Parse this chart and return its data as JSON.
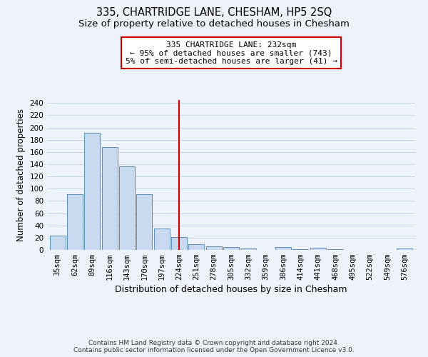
{
  "title": "335, CHARTRIDGE LANE, CHESHAM, HP5 2SQ",
  "subtitle": "Size of property relative to detached houses in Chesham",
  "xlabel": "Distribution of detached houses by size in Chesham",
  "ylabel": "Number of detached properties",
  "footer_line1": "Contains HM Land Registry data © Crown copyright and database right 2024.",
  "footer_line2": "Contains public sector information licensed under the Open Government Licence v3.0.",
  "categories": [
    "35sqm",
    "62sqm",
    "89sqm",
    "116sqm",
    "143sqm",
    "170sqm",
    "197sqm",
    "224sqm",
    "251sqm",
    "278sqm",
    "305sqm",
    "332sqm",
    "359sqm",
    "386sqm",
    "414sqm",
    "441sqm",
    "468sqm",
    "495sqm",
    "522sqm",
    "549sqm",
    "576sqm"
  ],
  "values": [
    23,
    91,
    191,
    168,
    137,
    91,
    35,
    21,
    9,
    6,
    5,
    2,
    0,
    5,
    1,
    3,
    1,
    0,
    0,
    0,
    2
  ],
  "bar_color": "#c9d9f0",
  "bar_edge_color": "#5b8db8",
  "grid_color": "#c8d4e8",
  "background_color": "#eef2fa",
  "vline_x_index": 7,
  "vline_color": "#cc0000",
  "annotation_line1": "335 CHARTRIDGE LANE: 232sqm",
  "annotation_line2": "← 95% of detached houses are smaller (743)",
  "annotation_line3": "5% of semi-detached houses are larger (41) →",
  "annotation_box_color": "#cc0000",
  "ylim": [
    0,
    245
  ],
  "yticks": [
    0,
    20,
    40,
    60,
    80,
    100,
    120,
    140,
    160,
    180,
    200,
    220,
    240
  ],
  "title_fontsize": 10.5,
  "subtitle_fontsize": 9.5,
  "xlabel_fontsize": 9,
  "ylabel_fontsize": 8.5,
  "tick_fontsize": 7.5,
  "annotation_fontsize": 8,
  "footer_fontsize": 6.5
}
